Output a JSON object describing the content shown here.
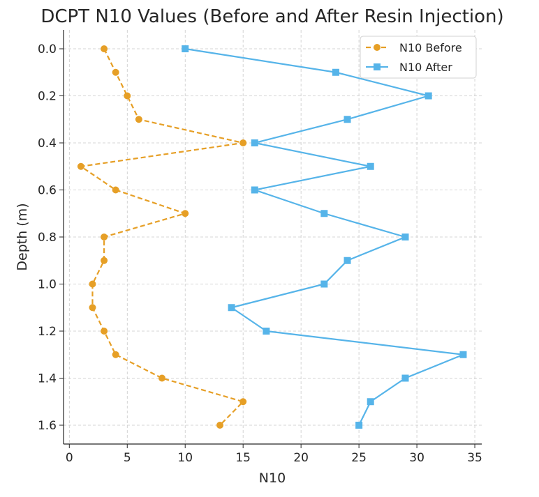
{
  "chart_data": {
    "type": "line",
    "title": "DCPT N10 Values (Before and After Resin Injection)",
    "xlabel": "N10",
    "ylabel": "Depth (m)",
    "xlim": [
      -0.5,
      35.6
    ],
    "ylim": [
      1.68,
      -0.08
    ],
    "y_inverted": true,
    "grid": true,
    "legend_position": "top-right",
    "xticks": [
      "0",
      "5",
      "10",
      "15",
      "20",
      "25",
      "30",
      "35"
    ],
    "xtick_values": [
      0,
      5,
      10,
      15,
      20,
      25,
      30,
      35
    ],
    "yticks": [
      "0.0",
      "0.2",
      "0.4",
      "0.6",
      "0.8",
      "1.0",
      "1.2",
      "1.4",
      "1.6"
    ],
    "ytick_values": [
      0,
      0.2,
      0.4,
      0.6,
      0.8,
      1.0,
      1.2,
      1.4,
      1.6
    ],
    "depth": [
      0.0,
      0.1,
      0.2,
      0.3,
      0.4,
      0.5,
      0.6,
      0.7,
      0.8,
      0.9,
      1.0,
      1.1,
      1.2,
      1.3,
      1.4,
      1.5,
      1.6
    ],
    "series": [
      {
        "name": "N10 Before",
        "color": "#E69F26",
        "marker": "circle",
        "linestyle": "dashed",
        "values": [
          3,
          4,
          5,
          6,
          15,
          1,
          4,
          10,
          3,
          3,
          2,
          2,
          3,
          4,
          8,
          15,
          13
        ]
      },
      {
        "name": "N10 After",
        "color": "#56B4E9",
        "marker": "square",
        "linestyle": "solid",
        "values": [
          10,
          23,
          31,
          24,
          16,
          26,
          16,
          22,
          29,
          24,
          22,
          14,
          17,
          34,
          29,
          26,
          25
        ]
      }
    ]
  }
}
